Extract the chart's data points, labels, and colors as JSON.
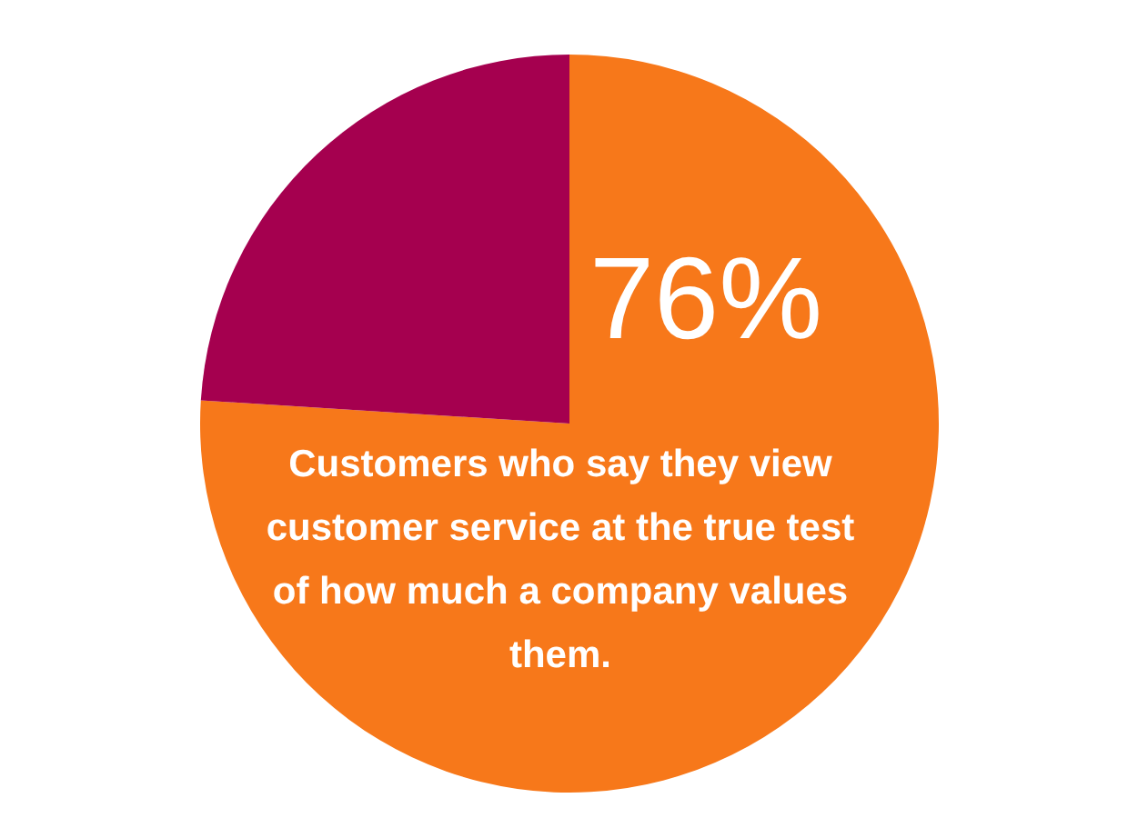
{
  "chart_data": {
    "type": "pie",
    "categories": [
      null,
      null
    ],
    "values": [
      76,
      24
    ],
    "colors": [
      "#f7781a",
      "#a5004f"
    ],
    "value_labels": [
      "76%",
      null
    ],
    "annotations": [
      "Customers who say they view customer service at the true test of how much a company values them."
    ],
    "legend": false
  }
}
